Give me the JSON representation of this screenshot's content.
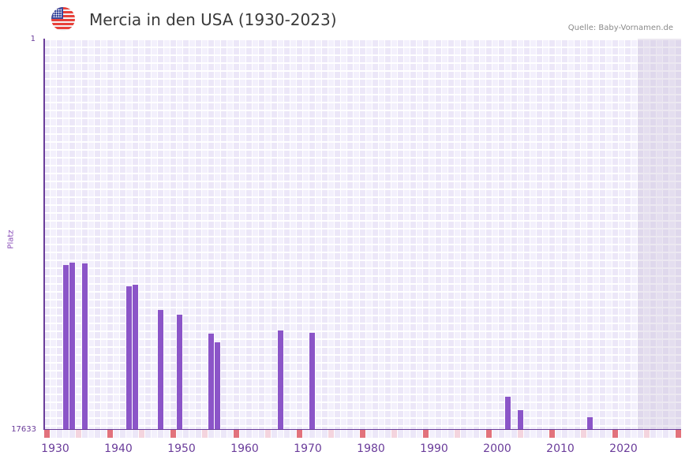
{
  "header": {
    "flag_icon": "us-flag-icon",
    "title": "Mercia in den USA (1930-2023)",
    "source": "Quelle: Baby-Vornamen.de"
  },
  "axes": {
    "y_top": "1",
    "y_bottom": "17633",
    "y_label": "Platz",
    "x_ticks": [
      "1930",
      "1940",
      "1950",
      "1960",
      "1970",
      "1980",
      "1990",
      "2000",
      "2010",
      "2020"
    ]
  },
  "colors": {
    "bar": "#8b55c8",
    "axis": "#6a3c9a",
    "decade_marker": "#e2727c",
    "half_decade_marker": "#f4d4de"
  },
  "chart_data": {
    "type": "bar",
    "title": "Mercia in den USA (1930-2023)",
    "xlabel": "",
    "ylabel": "Platz",
    "ylim": [
      17633,
      1
    ],
    "xlim": [
      1928,
      2028
    ],
    "y_inverted": true,
    "grid": true,
    "legend": null,
    "annotations": [
      "Quelle: Baby-Vornamen.de"
    ],
    "categories": [
      1931,
      1932,
      1934,
      1941,
      1942,
      1946,
      1949,
      1954,
      1955,
      1965,
      1970,
      2001,
      2003,
      2014
    ],
    "values": [
      10224,
      10117,
      10153,
      11186,
      11115,
      12254,
      12468,
      13323,
      13715,
      13180,
      13287,
      16172,
      16778,
      17098
    ]
  }
}
